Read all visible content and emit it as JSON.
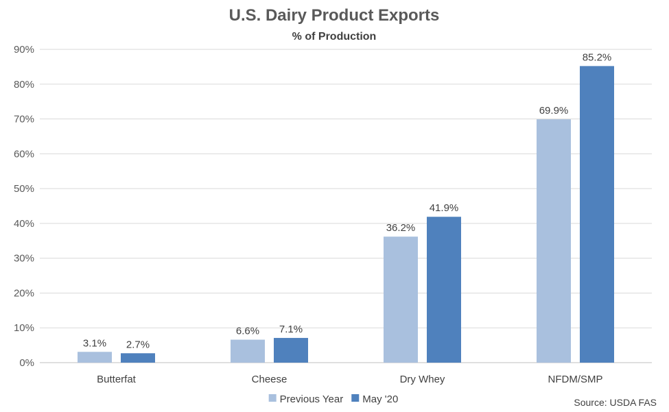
{
  "chart_data": {
    "type": "bar",
    "title": "U.S. Dairy Product Exports",
    "subtitle": "% of Production",
    "categories": [
      "Butterfat",
      "Cheese",
      "Dry Whey",
      "NFDM/SMP"
    ],
    "series": [
      {
        "name": "Previous Year",
        "color": "#a9c0de",
        "values": [
          3.1,
          6.6,
          36.2,
          69.9
        ],
        "labels": [
          "3.1%",
          "6.6%",
          "36.2%",
          "69.9%"
        ]
      },
      {
        "name": "May '20",
        "color": "#4f81bd",
        "values": [
          2.7,
          7.1,
          41.9,
          85.2
        ],
        "labels": [
          "2.7%",
          "7.1%",
          "41.9%",
          "85.2%"
        ]
      }
    ],
    "ylim": [
      0,
      90
    ],
    "yticks": [
      0,
      10,
      20,
      30,
      40,
      50,
      60,
      70,
      80,
      90
    ],
    "ytick_labels": [
      "0%",
      "10%",
      "20%",
      "30%",
      "40%",
      "50%",
      "60%",
      "70%",
      "80%",
      "90%"
    ],
    "grid": true,
    "legend": "bottom-center",
    "source": "Source: USDA FAS"
  }
}
